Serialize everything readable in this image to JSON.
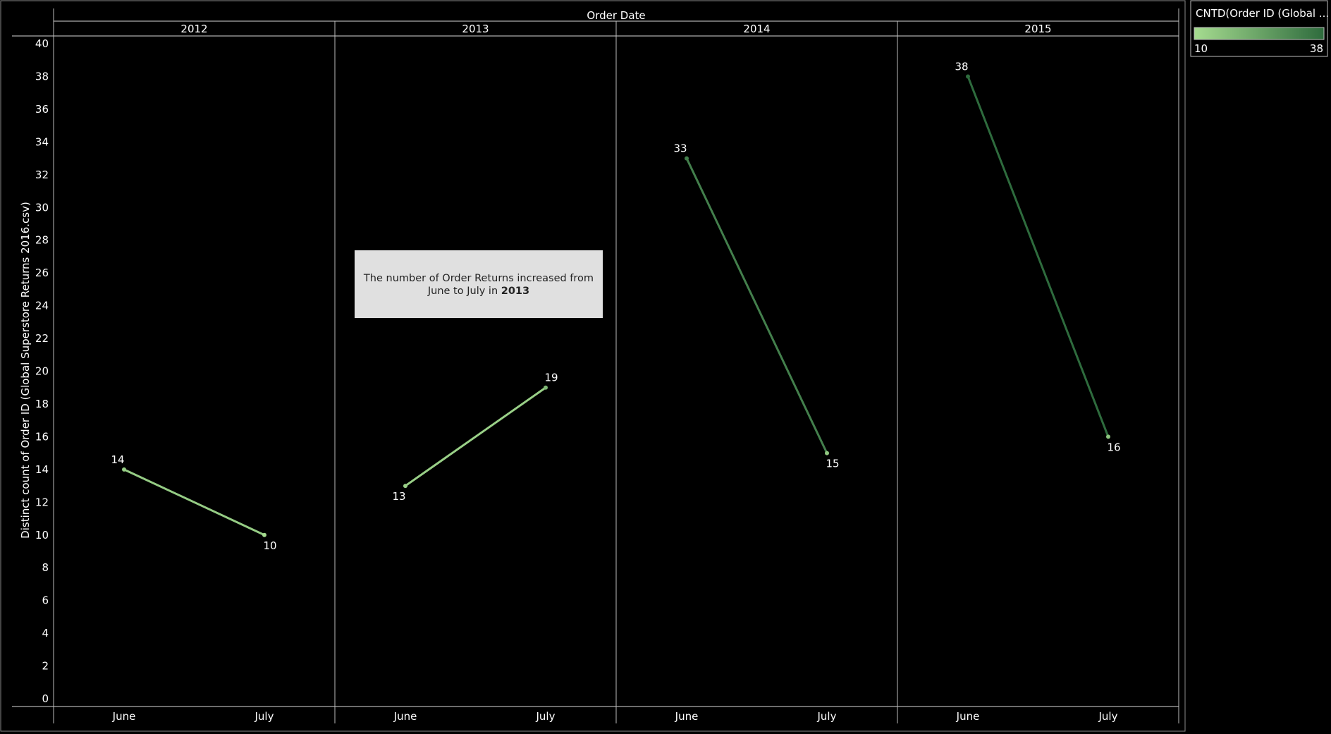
{
  "chart_data": {
    "type": "line",
    "column_header_title": "Order Date",
    "ylabel": "Distinct count of Order ID (Global Superstore Returns 2016.csv)",
    "ylim": [
      0,
      40
    ],
    "yticks": [
      0,
      2,
      4,
      6,
      8,
      10,
      12,
      14,
      16,
      18,
      20,
      22,
      24,
      26,
      28,
      30,
      32,
      34,
      36,
      38,
      40
    ],
    "grid": false,
    "panes": [
      {
        "year": "2012",
        "categories": [
          "June",
          "July"
        ],
        "values": [
          14,
          10
        ]
      },
      {
        "year": "2013",
        "categories": [
          "June",
          "July"
        ],
        "values": [
          13,
          19
        ]
      },
      {
        "year": "2014",
        "categories": [
          "June",
          "July"
        ],
        "values": [
          33,
          15
        ]
      },
      {
        "year": "2015",
        "categories": [
          "June",
          "July"
        ],
        "values": [
          38,
          16
        ]
      }
    ],
    "color_legend": {
      "title": "CNTD(Order ID (Global ...",
      "min_label": "10",
      "max_label": "38",
      "min_color": "#a6dc90",
      "max_color": "#2e6b3d",
      "placement": "top-right"
    },
    "annotation": {
      "line1": "The number of Order Returns increased from",
      "line2_prefix": "June to July in ",
      "line2_bold": "2013"
    }
  },
  "colors": {
    "background": "#000000",
    "annotation_box": "#e0e0e0",
    "text": "#ffffff"
  }
}
